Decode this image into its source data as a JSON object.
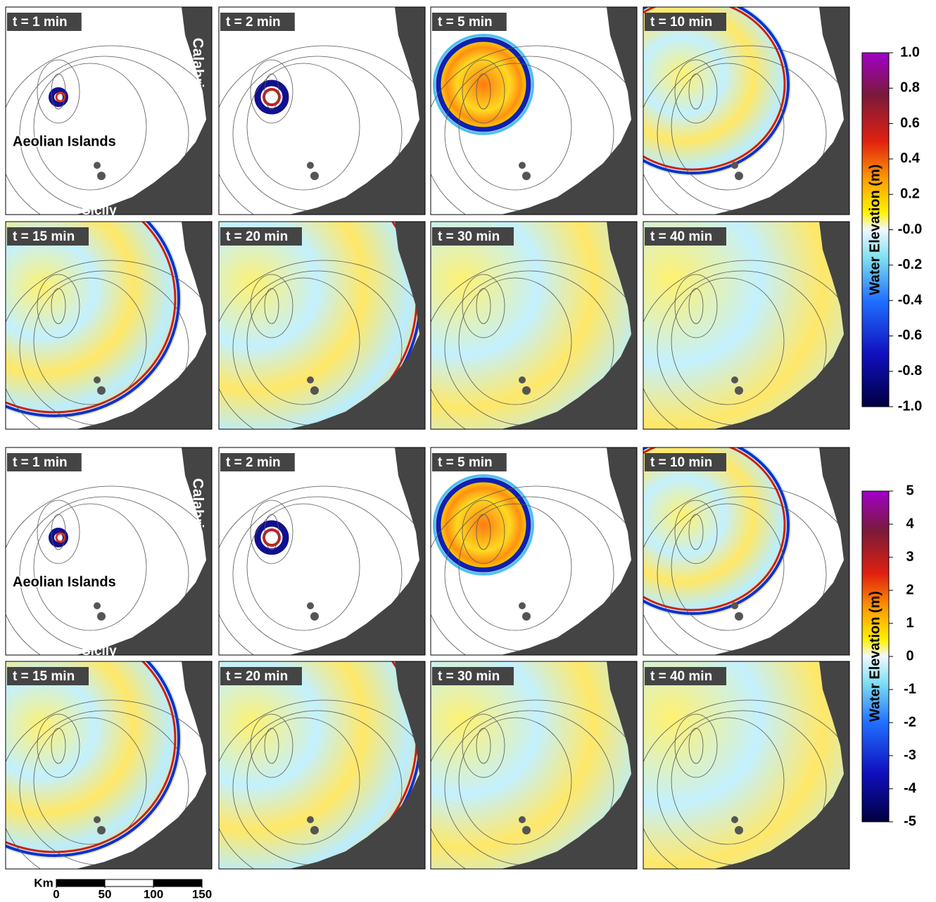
{
  "groups": [
    {
      "panels": [
        "t = 1 min",
        "t = 2 min",
        "t = 5 min",
        "t = 10 min",
        "t = 15 min",
        "t = 20 min",
        "t = 30 min",
        "t = 40 min"
      ],
      "places": {
        "calabria": "Calabria",
        "aeolian": "Aeolian Islands",
        "sicily": "Sicily"
      },
      "colorbar": {
        "title": "Water Elevation (m)",
        "lim": [
          -1,
          1
        ],
        "ticks": [
          {
            "value": 1,
            "label": "1.0"
          },
          0.8,
          0.6,
          0.4,
          0.2,
          {
            "value": 0,
            "label": "-0.0"
          },
          -0.2,
          -0.4,
          -0.6,
          -0.8,
          {
            "value": -1,
            "label": "-1.0"
          }
        ]
      }
    },
    {
      "panels": [
        "t = 1 min",
        "t = 2 min",
        "t = 5 min",
        "t = 10 min",
        "t = 15 min",
        "t = 20 min",
        "t = 30 min",
        "t = 40 min"
      ],
      "places": {
        "calabria": "Calabria",
        "aeolian": "Aeolian Islands",
        "sicily": "Sicily"
      },
      "colorbar": {
        "title": "Water Elevation (m)",
        "lim": [
          -5,
          5
        ],
        "ticks": [
          5,
          4,
          3,
          2,
          1,
          0,
          -1,
          -2,
          -3,
          -4,
          -5
        ]
      }
    }
  ],
  "scale_bar": {
    "unit": "Km",
    "lim": [
      0,
      150
    ],
    "ticks": [
      0,
      50,
      100,
      150
    ]
  }
}
